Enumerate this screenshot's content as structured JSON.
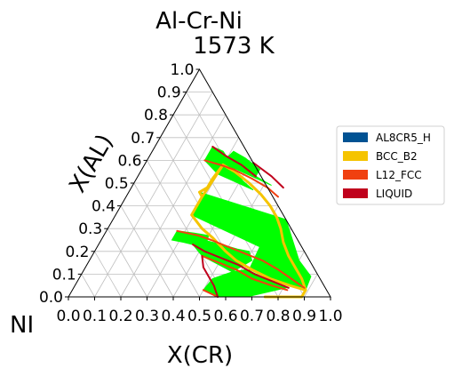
{
  "chart_data": {
    "type": "ternary",
    "title": "Al-Cr-Ni",
    "subtitle": "1573  K",
    "corner_label": "NI",
    "xlabel": "X(CR)",
    "ylabel": "X(AL)",
    "xlim": [
      0,
      1
    ],
    "ylim": [
      0,
      1
    ],
    "grid": true,
    "x_ticks": [
      "0.0",
      "0.1",
      "0.2",
      "0.3",
      "0.4",
      "0.5",
      "0.6",
      "0.7",
      "0.8",
      "0.9",
      "1.0"
    ],
    "y_ticks": [
      "0.0",
      "0.1",
      "0.2",
      "0.3",
      "0.4",
      "0.5",
      "0.6",
      "0.7",
      "0.8",
      "0.9",
      "1.0"
    ],
    "legend_position": "right",
    "legend": [
      {
        "name": "AL8CR5_H",
        "color": "#005293"
      },
      {
        "name": "BCC_B2",
        "color": "#f5c400"
      },
      {
        "name": "L12_FCC",
        "color": "#f04010"
      },
      {
        "name": "LIQUID",
        "color": "#c0001c"
      }
    ],
    "regions": [
      {
        "phase": "two-phase",
        "color": "#00ff00",
        "points": [
          [
            0.29,
            0.36
          ],
          [
            0.62,
            0.22
          ],
          [
            0.63,
            0.12
          ],
          [
            0.82,
            0.05
          ],
          [
            0.89,
            0.03
          ],
          [
            0.88,
            0.09
          ],
          [
            0.8,
            0.16
          ],
          [
            0.66,
            0.34
          ],
          [
            0.27,
            0.46
          ],
          [
            0.29,
            0.44
          ],
          [
            0.29,
            0.4
          ]
        ]
      },
      {
        "phase": "two-phase",
        "color": "#00ff00",
        "points": [
          [
            0.32,
            0.27
          ],
          [
            0.36,
            0.23
          ],
          [
            0.42,
            0.18
          ],
          [
            0.57,
            0.11
          ],
          [
            0.62,
            0.16
          ],
          [
            0.59,
            0.2
          ],
          [
            0.54,
            0.21
          ],
          [
            0.47,
            0.23
          ],
          [
            0.39,
            0.25
          ]
        ]
      },
      {
        "phase": "two-phase",
        "color": "#00ff00",
        "points": [
          [
            0.5,
            0.03
          ],
          [
            0.57,
            0.0
          ],
          [
            0.68,
            0.0
          ],
          [
            0.81,
            0.04
          ],
          [
            0.62,
            0.12
          ],
          [
            0.57,
            0.11
          ],
          [
            0.51,
            0.08
          ]
        ]
      },
      {
        "phase": "two-phase",
        "color": "#00ff00",
        "points": [
          [
            0.3,
            0.54
          ],
          [
            0.47,
            0.47
          ],
          [
            0.41,
            0.51
          ],
          [
            0.27,
            0.64
          ],
          [
            0.22,
            0.66
          ],
          [
            0.22,
            0.6
          ]
        ]
      },
      {
        "phase": "two-phase",
        "color": "#00ff00",
        "points": [
          [
            0.29,
            0.59
          ],
          [
            0.53,
            0.49
          ],
          [
            0.45,
            0.53
          ],
          [
            0.45,
            0.56
          ],
          [
            0.37,
            0.61
          ],
          [
            0.31,
            0.64
          ]
        ]
      },
      {
        "phase": "two-phase",
        "color": "#00ff00",
        "points": [
          [
            0.27,
            0.29
          ],
          [
            0.34,
            0.28
          ],
          [
            0.4,
            0.27
          ],
          [
            0.41,
            0.23
          ],
          [
            0.36,
            0.23
          ],
          [
            0.32,
            0.24
          ],
          [
            0.27,
            0.25
          ]
        ]
      }
    ],
    "phase_boundaries": [
      {
        "phase": "BCC_B2",
        "color": "#f5c400",
        "points": [
          [
            0.29,
            0.44
          ],
          [
            0.27,
            0.46
          ],
          [
            0.29,
            0.48
          ],
          [
            0.29,
            0.52
          ],
          [
            0.3,
            0.58
          ],
          [
            0.29,
            0.44
          ],
          [
            0.29,
            0.36
          ],
          [
            0.36,
            0.3
          ],
          [
            0.42,
            0.26
          ],
          [
            0.5,
            0.2
          ],
          [
            0.56,
            0.16
          ],
          [
            0.64,
            0.12
          ],
          [
            0.73,
            0.08
          ],
          [
            0.82,
            0.05
          ],
          [
            0.89,
            0.03
          ],
          [
            0.89,
            0.0
          ],
          [
            0.81,
            0.0
          ],
          [
            0.75,
            0.0
          ]
        ]
      },
      {
        "phase": "BCC_B2",
        "color": "#f5c400",
        "points": [
          [
            0.3,
            0.58
          ],
          [
            0.36,
            0.55
          ],
          [
            0.44,
            0.5
          ],
          [
            0.51,
            0.45
          ],
          [
            0.57,
            0.4
          ],
          [
            0.62,
            0.35
          ],
          [
            0.66,
            0.3
          ],
          [
            0.7,
            0.24
          ],
          [
            0.75,
            0.18
          ],
          [
            0.8,
            0.13
          ],
          [
            0.85,
            0.08
          ],
          [
            0.89,
            0.03
          ]
        ]
      },
      {
        "phase": "L12_FCC",
        "color": "#f04010",
        "points": [
          [
            0.22,
            0.6
          ],
          [
            0.29,
            0.58
          ],
          [
            0.35,
            0.56
          ],
          [
            0.44,
            0.52
          ],
          [
            0.52,
            0.48
          ],
          [
            0.58,
            0.44
          ]
        ]
      },
      {
        "phase": "L12_FCC",
        "color": "#f04010",
        "points": [
          [
            0.27,
            0.29
          ],
          [
            0.36,
            0.27
          ],
          [
            0.42,
            0.25
          ],
          [
            0.5,
            0.22
          ],
          [
            0.58,
            0.19
          ],
          [
            0.66,
            0.16
          ],
          [
            0.74,
            0.12
          ],
          [
            0.81,
            0.08
          ],
          [
            0.88,
            0.04
          ]
        ]
      },
      {
        "phase": "L12_FCC",
        "color": "#f04010",
        "points": [
          [
            0.5,
            0.03
          ],
          [
            0.57,
            0.0
          ]
        ]
      },
      {
        "phase": "L12_FCC",
        "color": "#f04010",
        "points": [
          [
            0.42,
            0.18
          ],
          [
            0.5,
            0.15
          ],
          [
            0.58,
            0.12
          ],
          [
            0.66,
            0.08
          ],
          [
            0.75,
            0.05
          ],
          [
            0.82,
            0.03
          ]
        ]
      },
      {
        "phase": "LIQUID",
        "color": "#c0001c",
        "points": [
          [
            0.22,
            0.66
          ],
          [
            0.29,
            0.62
          ],
          [
            0.37,
            0.58
          ],
          [
            0.45,
            0.53
          ]
        ]
      },
      {
        "phase": "LIQUID",
        "color": "#c0001c",
        "points": [
          [
            0.41,
            0.59
          ],
          [
            0.51,
            0.53
          ],
          [
            0.58,
            0.48
          ]
        ]
      },
      {
        "phase": "LIQUID",
        "color": "#c0001c",
        "points": [
          [
            0.42,
            0.18
          ],
          [
            0.45,
            0.13
          ],
          [
            0.49,
            0.09
          ],
          [
            0.53,
            0.05
          ],
          [
            0.57,
            0.0
          ]
        ]
      },
      {
        "phase": "LIQUID",
        "color": "#c0001c",
        "points": [
          [
            0.36,
            0.23
          ],
          [
            0.42,
            0.2
          ],
          [
            0.5,
            0.17
          ],
          [
            0.58,
            0.14
          ],
          [
            0.66,
            0.1
          ],
          [
            0.74,
            0.07
          ],
          [
            0.82,
            0.04
          ]
        ]
      }
    ]
  }
}
